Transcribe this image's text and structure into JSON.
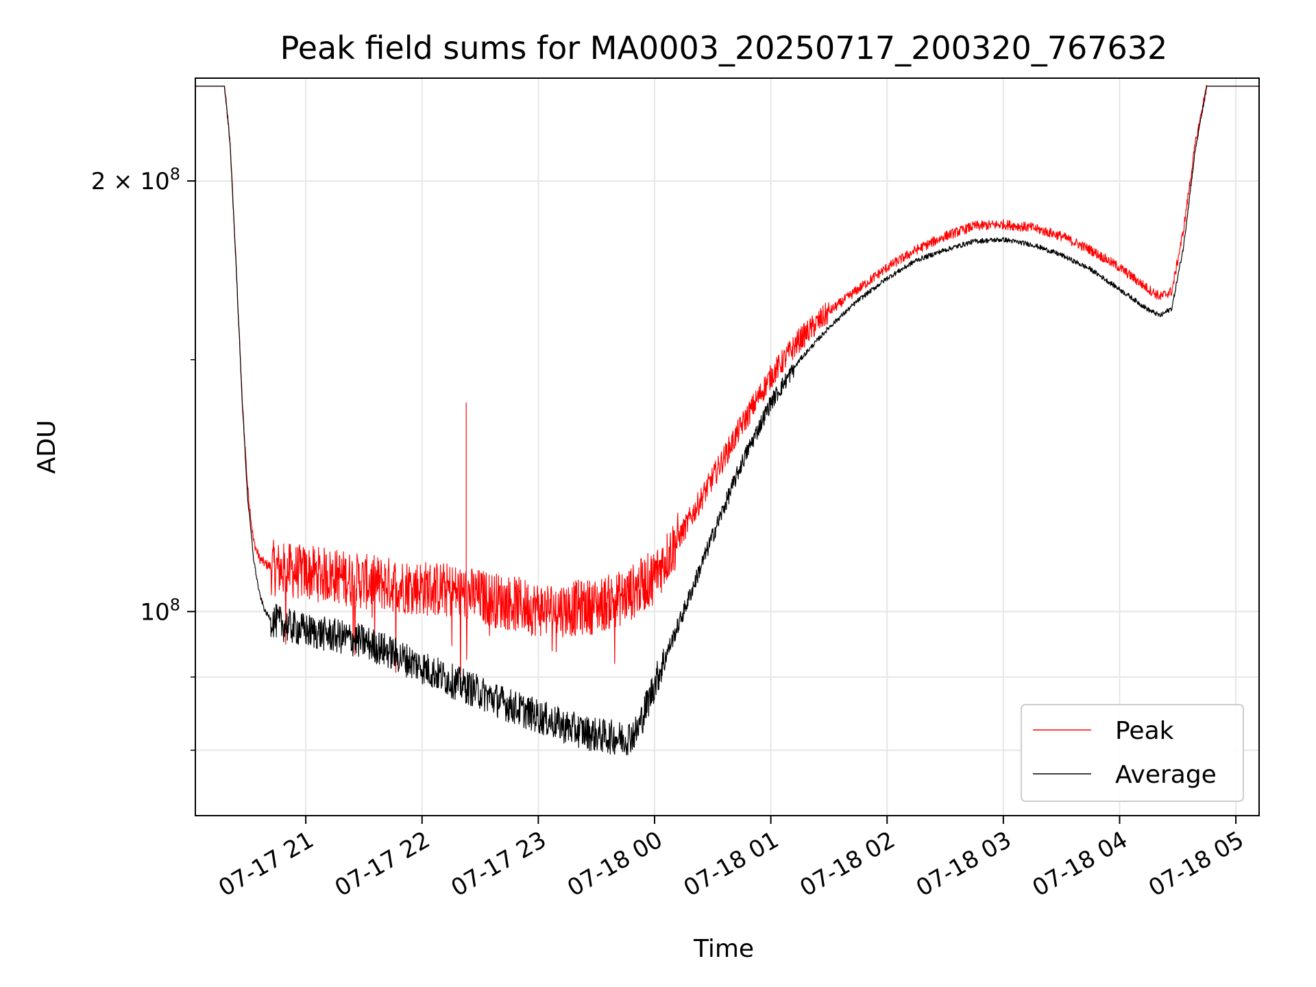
{
  "chart_data": {
    "type": "line",
    "title": "Peak field sums for MA0003_20250717_200320_767632",
    "xlabel": "Time",
    "ylabel": "ADU",
    "yscale": "log",
    "grid": true,
    "legend_position": "lower-right",
    "x_ticks": [
      "07-17 21",
      "07-17 22",
      "07-17 23",
      "07-18 00",
      "07-18 01",
      "07-18 02",
      "07-18 03",
      "07-18 04",
      "07-18 05"
    ],
    "y_ticks": [
      {
        "value": 100000000,
        "base": "10",
        "exp": "8"
      },
      {
        "value": 200000000,
        "mant": "2 × 10",
        "exp": "8"
      }
    ],
    "xlim_hours": [
      20.05,
      29.2
    ],
    "ylim": [
      72000000,
      236000000
    ],
    "series": [
      {
        "name": "Peak",
        "color": "#ff0000",
        "t": [
          20.05,
          20.3,
          20.35,
          20.4,
          20.45,
          20.5,
          20.55,
          20.6,
          20.65,
          20.7,
          20.8,
          21.0,
          21.25,
          21.5,
          21.75,
          22.0,
          22.25,
          22.5,
          22.75,
          23.0,
          23.25,
          23.5,
          23.75,
          24.0,
          24.25,
          24.5,
          24.75,
          25.0,
          25.25,
          25.5,
          25.75,
          26.0,
          26.25,
          26.5,
          26.75,
          27.0,
          27.25,
          27.5,
          27.75,
          28.0,
          28.25,
          28.35,
          28.45,
          28.55,
          28.65,
          28.75,
          28.85,
          29.2
        ],
        "values": [
          233000000,
          233000000,
          212000000,
          175000000,
          142000000,
          122000000,
          112000000,
          109000000,
          108000000,
          107500000,
          107000000,
          106500000,
          106000000,
          105000000,
          104500000,
          104000000,
          103500000,
          102500000,
          101500000,
          100500000,
          100500000,
          101000000,
          102500000,
          106000000,
          114000000,
          124000000,
          135000000,
          146000000,
          155000000,
          162000000,
          168000000,
          174000000,
          179000000,
          183000000,
          186000000,
          186500000,
          185500000,
          183000000,
          179000000,
          174000000,
          168000000,
          166000000,
          167500000,
          185000000,
          212000000,
          233000000,
          233000000,
          233000000
        ]
      },
      {
        "name": "Average",
        "color": "#000000",
        "t": [
          20.05,
          20.3,
          20.35,
          20.4,
          20.45,
          20.5,
          20.55,
          20.6,
          20.65,
          20.7,
          20.8,
          20.9,
          21.0,
          21.25,
          21.5,
          21.75,
          22.0,
          22.25,
          22.5,
          22.75,
          23.0,
          23.25,
          23.5,
          23.75,
          23.85,
          24.0,
          24.25,
          24.5,
          24.75,
          25.0,
          25.25,
          25.5,
          25.75,
          26.0,
          26.25,
          26.5,
          26.75,
          27.0,
          27.25,
          27.5,
          27.75,
          28.0,
          28.25,
          28.35,
          28.45,
          28.55,
          28.65,
          28.75,
          28.85,
          29.2
        ],
        "values": [
          233000000,
          233000000,
          212000000,
          175000000,
          142000000,
          120000000,
          109000000,
          103000000,
          100000000,
          98800000,
          98000000,
          97500000,
          97000000,
          96200000,
          95300000,
          93500000,
          91500000,
          89500000,
          87800000,
          86000000,
          84500000,
          83000000,
          82000000,
          81500000,
          82500000,
          89000000,
          100000000,
          113000000,
          127000000,
          140000000,
          150000000,
          158000000,
          165000000,
          171000000,
          176000000,
          179000000,
          181500000,
          182000000,
          180500000,
          177500000,
          173500000,
          168000000,
          162500000,
          161000000,
          163000000,
          180000000,
          210000000,
          233000000,
          233000000,
          233000000
        ]
      }
    ]
  }
}
